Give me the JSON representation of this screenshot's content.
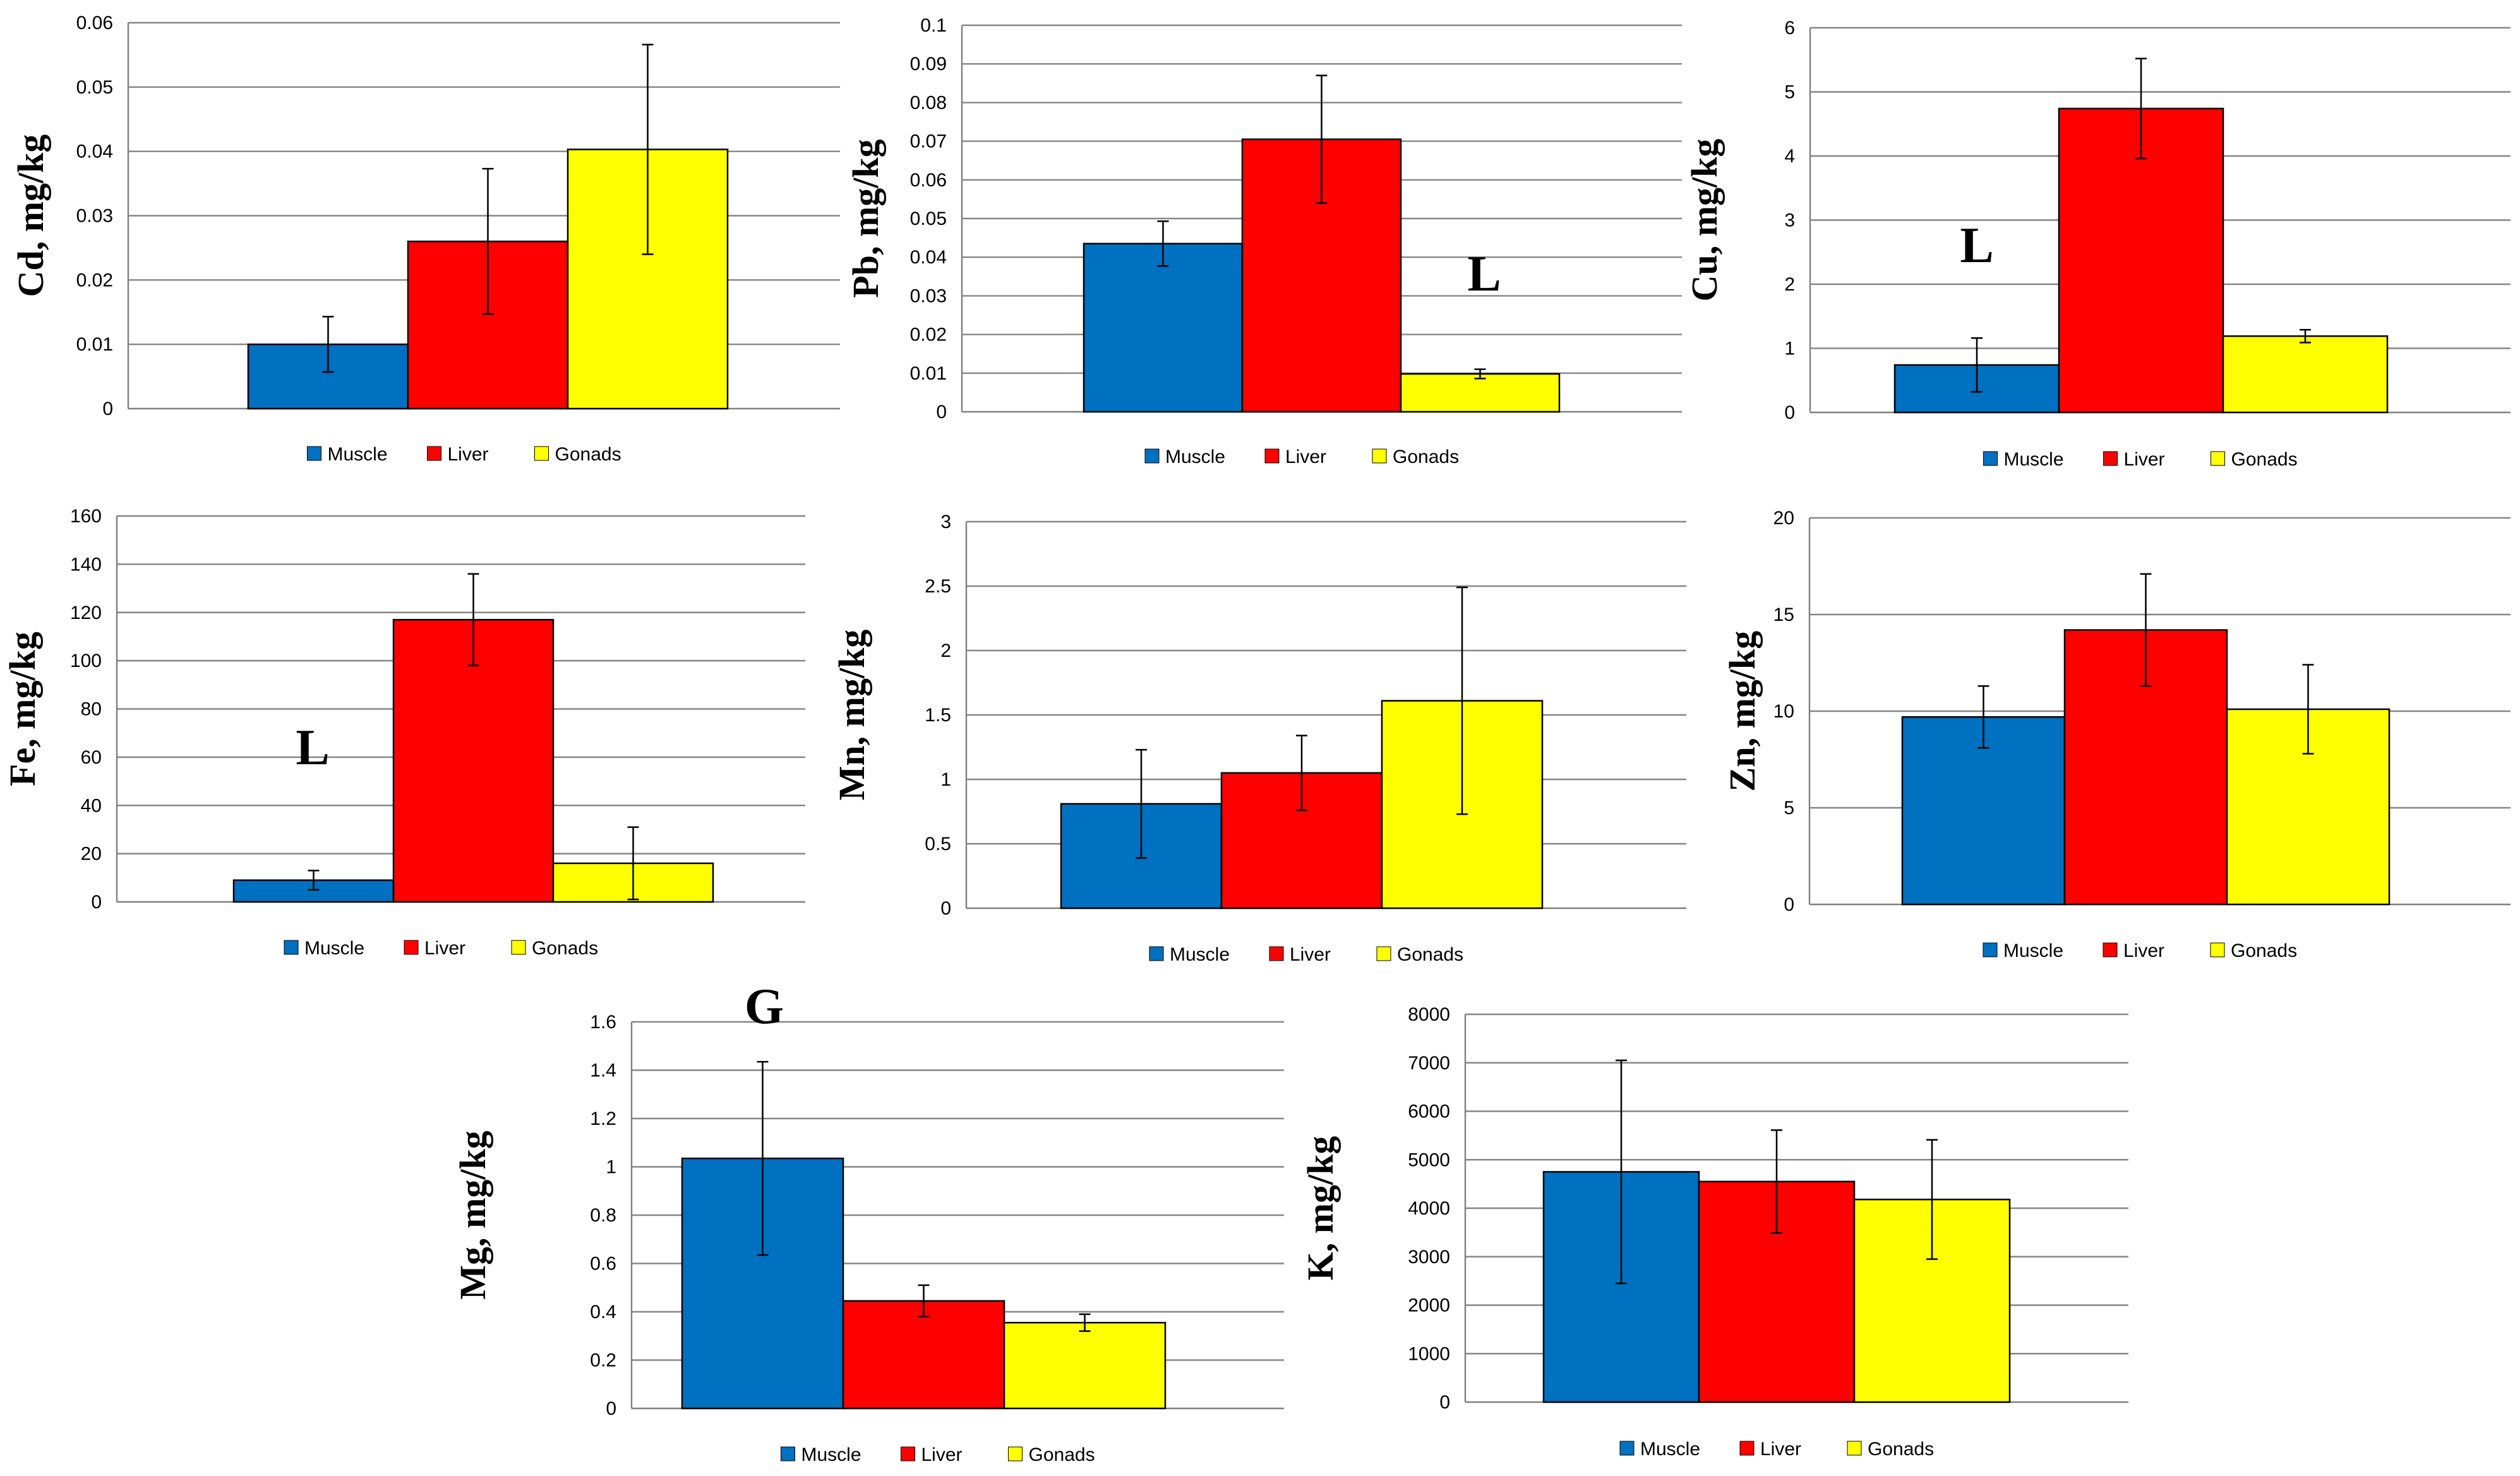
{
  "legend_items": [
    {
      "label": "Muscle",
      "color": "#0070C0"
    },
    {
      "label": "Liver",
      "color": "#FF0000"
    },
    {
      "label": "Gonads",
      "color": "#FFFF00"
    }
  ],
  "chart_data": [
    {
      "type": "bar",
      "ylabel": "Cd, mg/kg",
      "categories": [
        "Muscle",
        "Liver",
        "Gonads"
      ],
      "values": [
        0.01,
        0.026,
        0.0403
      ],
      "errors": [
        0.0043,
        0.0113,
        0.0163
      ],
      "ylim": [
        0,
        0.06
      ],
      "yticks": [
        "0",
        "0.01",
        "0.02",
        "0.03",
        "0.04",
        "0.05",
        "0.06"
      ],
      "grid": true,
      "legend_position": "bottom",
      "marker": ""
    },
    {
      "type": "bar",
      "ylabel": "Pb, mg/kg",
      "categories": [
        "Muscle",
        "Liver",
        "Gonads"
      ],
      "values": [
        0.0435,
        0.0705,
        0.0098
      ],
      "errors": [
        0.0058,
        0.0165,
        0.0012
      ],
      "ylim": [
        0,
        0.1
      ],
      "yticks": [
        "0",
        "0.01",
        "0.02",
        "0.03",
        "0.04",
        "0.05",
        "0.06",
        "0.07",
        "0.08",
        "0.09",
        "0.1"
      ],
      "grid": true,
      "legend_position": "bottom",
      "marker": "L"
    },
    {
      "type": "bar",
      "ylabel": "Cu, mg/kg",
      "categories": [
        "Muscle",
        "Liver",
        "Gonads"
      ],
      "values": [
        0.74,
        4.74,
        1.19
      ],
      "errors": [
        0.42,
        0.78,
        0.1
      ],
      "ylim": [
        0,
        6
      ],
      "yticks": [
        "0",
        "1",
        "2",
        "3",
        "4",
        "5",
        "6"
      ],
      "grid": true,
      "legend_position": "bottom",
      "marker": "L"
    },
    {
      "type": "bar",
      "ylabel": "Fe, mg/kg",
      "categories": [
        "Muscle",
        "Liver",
        "Gonads"
      ],
      "values": [
        9,
        117,
        16
      ],
      "errors": [
        4,
        19,
        15
      ],
      "ylim": [
        0,
        160
      ],
      "yticks": [
        "0",
        "20",
        "40",
        "60",
        "80",
        "100",
        "120",
        "140",
        "160"
      ],
      "grid": true,
      "legend_position": "bottom",
      "marker": "L"
    },
    {
      "type": "bar",
      "ylabel": "Mn, mg/kg",
      "categories": [
        "Muscle",
        "Liver",
        "Gonads"
      ],
      "values": [
        0.81,
        1.05,
        1.61
      ],
      "errors": [
        0.42,
        0.29,
        0.88
      ],
      "ylim": [
        0,
        3
      ],
      "yticks": [
        "0",
        "0.5",
        "1",
        "1.5",
        "2",
        "2.5",
        "3"
      ],
      "grid": true,
      "legend_position": "bottom",
      "marker": ""
    },
    {
      "type": "bar",
      "ylabel": "Zn, mg/kg",
      "categories": [
        "Muscle",
        "Liver",
        "Gonads"
      ],
      "values": [
        9.7,
        14.2,
        10.1
      ],
      "errors": [
        1.6,
        2.9,
        2.3
      ],
      "ylim": [
        0,
        20
      ],
      "yticks": [
        "0",
        "5",
        "10",
        "15",
        "20"
      ],
      "grid": true,
      "legend_position": "bottom",
      "marker": ""
    },
    {
      "type": "bar",
      "ylabel": "Mg, mg/kg",
      "categories": [
        "Muscle",
        "Liver",
        "Gonads"
      ],
      "values": [
        1.035,
        0.445,
        0.355
      ],
      "errors": [
        0.4,
        0.065,
        0.035
      ],
      "ylim": [
        0,
        1.6
      ],
      "yticks": [
        "0",
        "0.2",
        "0.4",
        "0.6",
        "0.8",
        "1",
        "1.2",
        "1.4",
        "1.6"
      ],
      "grid": true,
      "legend_position": "bottom",
      "marker": "G"
    },
    {
      "type": "bar",
      "ylabel": "K, mg/kg",
      "categories": [
        "Muscle",
        "Liver",
        "Gonads"
      ],
      "values": [
        4750,
        4550,
        4180
      ],
      "errors": [
        2300,
        1060,
        1230
      ],
      "ylim": [
        0,
        8000
      ],
      "yticks": [
        "0",
        "1000",
        "2000",
        "3000",
        "4000",
        "5000",
        "6000",
        "7000",
        "8000"
      ],
      "grid": true,
      "legend_position": "bottom",
      "marker": ""
    }
  ]
}
